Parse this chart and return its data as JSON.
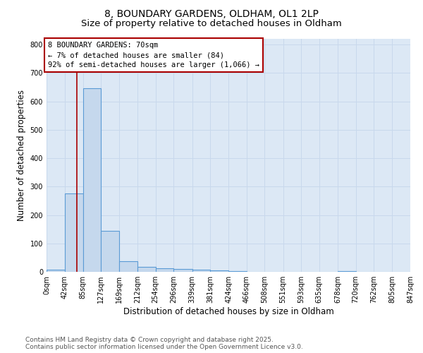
{
  "title_line1": "8, BOUNDARY GARDENS, OLDHAM, OL1 2LP",
  "title_line2": "Size of property relative to detached houses in Oldham",
  "xlabel": "Distribution of detached houses by size in Oldham",
  "ylabel": "Number of detached properties",
  "bin_edges": [
    0,
    42,
    85,
    127,
    169,
    212,
    254,
    296,
    339,
    381,
    424,
    466,
    508,
    551,
    593,
    635,
    678,
    720,
    762,
    805,
    847
  ],
  "bar_heights": [
    8,
    275,
    645,
    143,
    38,
    18,
    12,
    10,
    8,
    5,
    3,
    0,
    0,
    0,
    0,
    0,
    3,
    0,
    0,
    0
  ],
  "bar_color": "#c5d8ed",
  "bar_edge_color": "#5b9bd5",
  "grid_color": "#c8d8ec",
  "bg_color": "#dce8f5",
  "property_line_x": 70,
  "property_line_color": "#aa0000",
  "annotation_text": "8 BOUNDARY GARDENS: 70sqm\n← 7% of detached houses are smaller (84)\n92% of semi-detached houses are larger (1,066) →",
  "annotation_box_color": "#aa0000",
  "annotation_bg": "#ffffff",
  "ylim": [
    0,
    820
  ],
  "yticks": [
    0,
    100,
    200,
    300,
    400,
    500,
    600,
    700,
    800
  ],
  "footer_line1": "Contains HM Land Registry data © Crown copyright and database right 2025.",
  "footer_line2": "Contains public sector information licensed under the Open Government Licence v3.0.",
  "title_fontsize": 10,
  "subtitle_fontsize": 9.5,
  "axis_label_fontsize": 8.5,
  "tick_fontsize": 7,
  "annotation_fontsize": 7.5,
  "footer_fontsize": 6.5
}
